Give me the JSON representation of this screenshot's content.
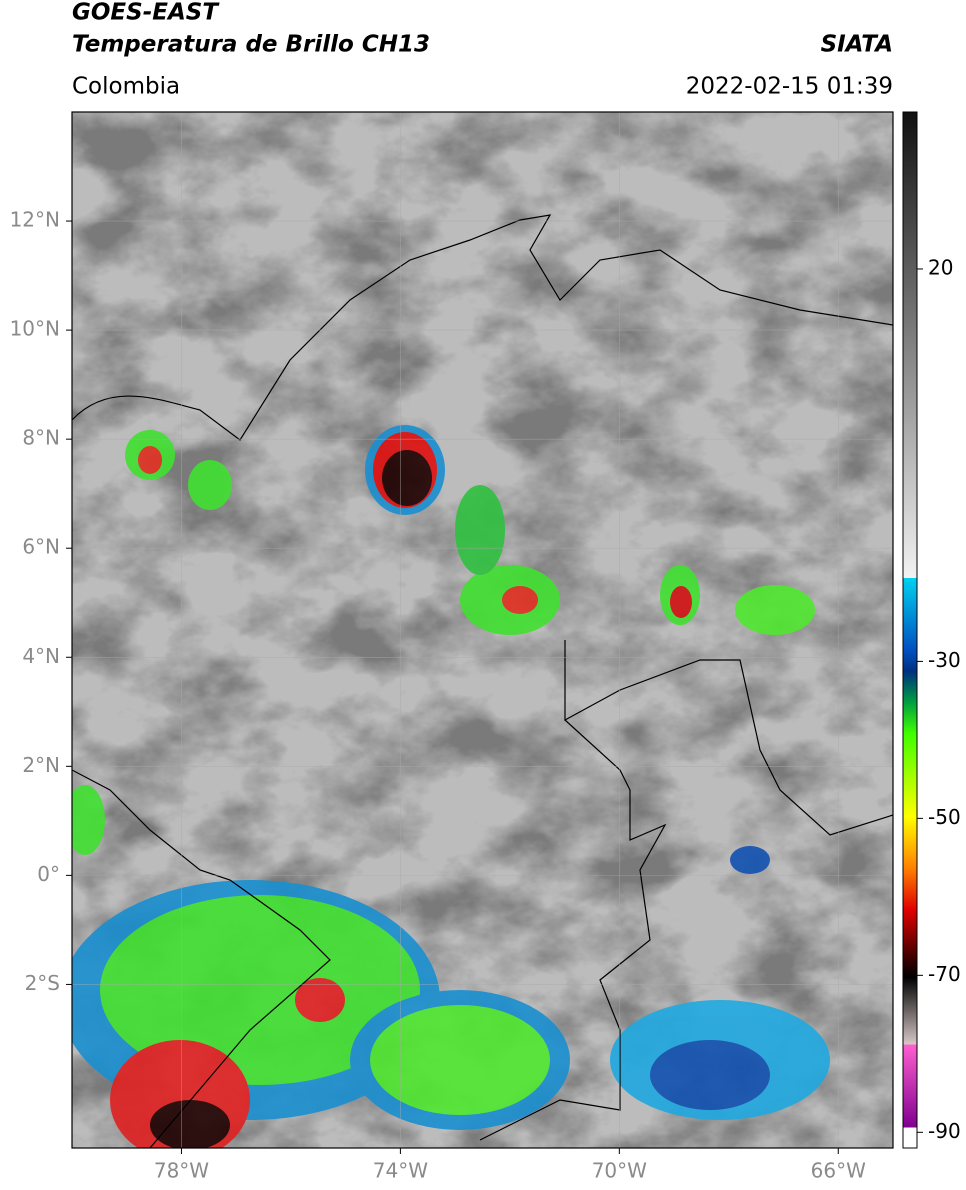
{
  "header": {
    "satellite": "GOES-EAST",
    "product": "Temperatura de Brillo CH13",
    "source": "SIATA",
    "region": "Colombia",
    "datetime": "2022-02-15 01:39"
  },
  "map": {
    "xlim": [
      -80,
      -65
    ],
    "ylim": [
      -5,
      14
    ],
    "xticks": [
      {
        "value": -78,
        "label": "78°W"
      },
      {
        "value": -74,
        "label": "74°W"
      },
      {
        "value": -70,
        "label": "70°W"
      },
      {
        "value": -66,
        "label": "66°W"
      }
    ],
    "yticks": [
      {
        "value": 12,
        "label": "12°N"
      },
      {
        "value": 10,
        "label": "10°N"
      },
      {
        "value": 8,
        "label": "8°N"
      },
      {
        "value": 6,
        "label": "6°N"
      },
      {
        "value": 4,
        "label": "4°N"
      },
      {
        "value": 2,
        "label": "2°N"
      },
      {
        "value": 0,
        "label": "0°"
      },
      {
        "value": -2,
        "label": "2°S"
      }
    ],
    "grid": true
  },
  "colorbar": {
    "ylim": [
      -92,
      40
    ],
    "yticks": [
      20,
      -30,
      -50,
      -70,
      -90
    ]
  }
}
